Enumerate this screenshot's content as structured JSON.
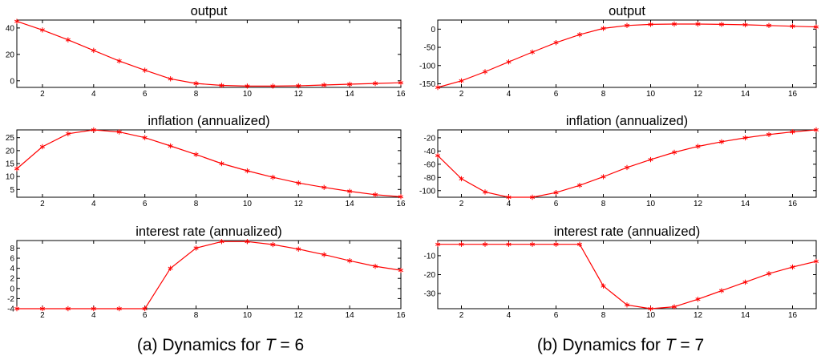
{
  "colors": {
    "series": "#ff0000",
    "axes": "#000000",
    "background": "#ffffff"
  },
  "captions": [
    {
      "tag": "(a)",
      "text": "Dynamics for ",
      "var": "T",
      "eq": "= 6"
    },
    {
      "tag": "(b)",
      "text": "Dynamics for ",
      "var": "T",
      "eq": "= 7"
    }
  ],
  "chart_data": [
    {
      "type": "line",
      "panel": "a",
      "row": 0,
      "title": "output",
      "xlabel": "",
      "ylabel": "",
      "marker": "asterisk",
      "grid": false,
      "xlim": [
        1,
        16
      ],
      "ylim": [
        -5,
        46
      ],
      "xticks": [
        2,
        4,
        6,
        8,
        10,
        12,
        14,
        16
      ],
      "yticks": [
        0,
        20,
        40
      ],
      "x": [
        1,
        2,
        3,
        4,
        5,
        6,
        7,
        8,
        9,
        10,
        11,
        12,
        13,
        14,
        15,
        16
      ],
      "series": [
        {
          "values": [
            45,
            38.5,
            31,
            23,
            15,
            8,
            1.5,
            -2,
            -3.5,
            -4,
            -4,
            -3.8,
            -3.2,
            -2.6,
            -2,
            -1.5
          ]
        }
      ]
    },
    {
      "type": "line",
      "panel": "a",
      "row": 1,
      "title": "inflation (annualized)",
      "xlabel": "",
      "ylabel": "",
      "marker": "asterisk",
      "grid": false,
      "xlim": [
        1,
        16
      ],
      "ylim": [
        2,
        28
      ],
      "xticks": [
        2,
        4,
        6,
        8,
        10,
        12,
        14,
        16
      ],
      "yticks": [
        5,
        10,
        15,
        20,
        25
      ],
      "x": [
        1,
        2,
        3,
        4,
        5,
        6,
        7,
        8,
        9,
        10,
        11,
        12,
        13,
        14,
        15,
        16
      ],
      "series": [
        {
          "values": [
            13,
            21.5,
            26.5,
            28,
            27.2,
            25,
            21.8,
            18.5,
            15,
            12.2,
            9.7,
            7.5,
            5.8,
            4.3,
            3,
            2.2
          ]
        }
      ]
    },
    {
      "type": "line",
      "panel": "a",
      "row": 2,
      "title": "interest rate (annualized)",
      "xlabel": "",
      "ylabel": "",
      "marker": "asterisk",
      "grid": false,
      "xlim": [
        1,
        16
      ],
      "ylim": [
        -4,
        9.5
      ],
      "xticks": [
        2,
        4,
        6,
        8,
        10,
        12,
        14,
        16
      ],
      "yticks": [
        -4,
        -2,
        0,
        2,
        4,
        6,
        8
      ],
      "x": [
        1,
        2,
        3,
        4,
        5,
        6,
        7,
        8,
        9,
        10,
        11,
        12,
        13,
        14,
        15,
        16
      ],
      "series": [
        {
          "values": [
            -4,
            -4,
            -4,
            -4,
            -4,
            -4,
            4,
            8,
            9.3,
            9.3,
            8.7,
            7.8,
            6.7,
            5.5,
            4.4,
            3.6
          ]
        }
      ]
    },
    {
      "type": "line",
      "panel": "b",
      "row": 0,
      "title": "output",
      "xlabel": "",
      "ylabel": "",
      "marker": "asterisk",
      "grid": false,
      "xlim": [
        1,
        17
      ],
      "ylim": [
        -160,
        25
      ],
      "xticks": [
        2,
        4,
        6,
        8,
        10,
        12,
        14,
        16
      ],
      "yticks": [
        -150,
        -100,
        -50,
        0
      ],
      "x": [
        1,
        2,
        3,
        4,
        5,
        6,
        7,
        8,
        9,
        10,
        11,
        12,
        13,
        14,
        15,
        16,
        17
      ],
      "series": [
        {
          "values": [
            -160,
            -142,
            -117,
            -90,
            -63,
            -37,
            -15,
            2,
            10,
            13,
            14,
            14,
            13,
            12,
            10,
            8,
            6
          ]
        }
      ]
    },
    {
      "type": "line",
      "panel": "b",
      "row": 1,
      "title": "inflation (annualized)",
      "xlabel": "",
      "ylabel": "",
      "marker": "asterisk",
      "grid": false,
      "xlim": [
        1,
        17
      ],
      "ylim": [
        -110,
        -8
      ],
      "xticks": [
        2,
        4,
        6,
        8,
        10,
        12,
        14,
        16
      ],
      "yticks": [
        -100,
        -80,
        -60,
        -40,
        -20
      ],
      "x": [
        1,
        2,
        3,
        4,
        5,
        6,
        7,
        8,
        9,
        10,
        11,
        12,
        13,
        14,
        15,
        16,
        17
      ],
      "series": [
        {
          "values": [
            -47,
            -82,
            -102,
            -110,
            -110,
            -103,
            -92,
            -79,
            -65,
            -53,
            -42,
            -33,
            -26,
            -20,
            -15,
            -11,
            -8
          ]
        }
      ]
    },
    {
      "type": "line",
      "panel": "b",
      "row": 2,
      "title": "interest rate (annualized)",
      "xlabel": "",
      "ylabel": "",
      "marker": "asterisk",
      "grid": false,
      "xlim": [
        1,
        17
      ],
      "ylim": [
        -38,
        -2
      ],
      "xticks": [
        2,
        4,
        6,
        8,
        10,
        12,
        14,
        16
      ],
      "yticks": [
        -30,
        -20,
        -10
      ],
      "x": [
        1,
        2,
        3,
        4,
        5,
        6,
        7,
        8,
        9,
        10,
        11,
        12,
        13,
        14,
        15,
        16,
        17
      ],
      "series": [
        {
          "values": [
            -4,
            -4,
            -4,
            -4,
            -4,
            -4,
            -4,
            -26,
            -36,
            -38,
            -37,
            -33,
            -28.5,
            -24,
            -19.5,
            -16,
            -13
          ]
        }
      ]
    }
  ]
}
